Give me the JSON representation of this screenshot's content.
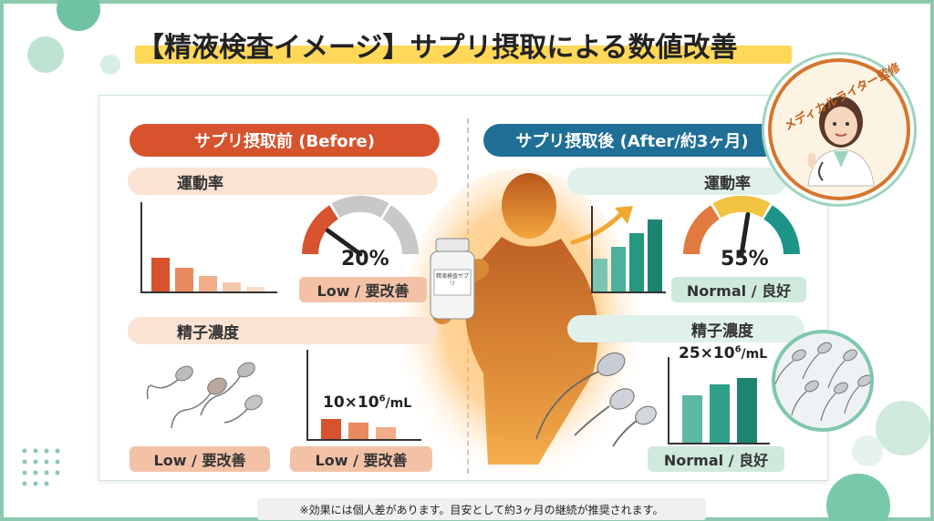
{
  "title": "【精液検査イメージ】サプリ摂取による数値改善",
  "badge": {
    "text": "メディカルライター監修"
  },
  "before": {
    "header": "サプリ摂取前 (Before)",
    "motility": {
      "label": "運動率",
      "value": "20%",
      "level": 20,
      "status": "Low / 要改善",
      "bars": [
        38,
        27,
        17,
        10,
        5
      ]
    },
    "concentration": {
      "label": "精子濃度",
      "value_base": "10×10",
      "value_exp": "6",
      "value_unit": "/mL",
      "status_image": "Low / 要改善",
      "status_chart": "Low / 要改善",
      "bars": [
        22,
        18,
        13
      ]
    }
  },
  "after": {
    "header": "サプリ摂取後 (After/約3ヶ月)",
    "motility": {
      "label": "運動率",
      "value": "55%",
      "level": 55,
      "status": "Normal / 良好",
      "bars": [
        38,
        52,
        68,
        84
      ]
    },
    "concentration": {
      "label": "精子濃度",
      "value_base": "25×10",
      "value_exp": "6",
      "value_unit": "/mL",
      "status": "Normal / 良好",
      "bars": [
        55,
        68,
        76
      ]
    }
  },
  "bottle": {
    "label": "精液検査サプリ"
  },
  "note": "※効果には個人差があります。目安として約3ヶ月の継続が推奨されます。",
  "colors": {
    "before": "#d6532e",
    "after": "#1f6f96",
    "teal": "#1c9487",
    "peach": "#fbe3d4",
    "mint": "#dff1ea"
  }
}
